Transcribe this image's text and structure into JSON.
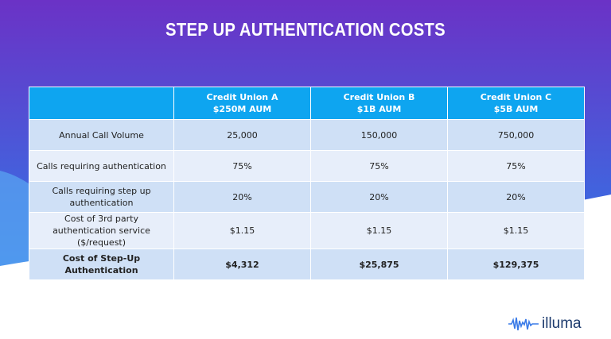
{
  "header": {
    "title": "STEP UP AUTHENTICATION COSTS"
  },
  "table": {
    "columns": [
      {
        "name": "Credit Union A",
        "aum": "$250M AUM"
      },
      {
        "name": "Credit Union B",
        "aum": "$1B AUM"
      },
      {
        "name": "Credit Union C",
        "aum": "$5B AUM"
      }
    ],
    "rows": [
      {
        "label": "Annual Call Volume",
        "values": [
          "25,000",
          "150,000",
          "750,000"
        ]
      },
      {
        "label": "Calls requiring authentication",
        "values": [
          "75%",
          "75%",
          "75%"
        ]
      },
      {
        "label": "Calls requiring step up authentication",
        "values": [
          "20%",
          "20%",
          "20%"
        ]
      },
      {
        "label": "Cost of 3rd party authentication service ($/request)",
        "values": [
          "$1.15",
          "$1.15",
          "$1.15"
        ]
      },
      {
        "label": "Cost of Step-Up Authentication",
        "values": [
          "$4,312",
          "$25,875",
          "$129,375"
        ]
      }
    ]
  },
  "logo": {
    "text": "illuma"
  }
}
